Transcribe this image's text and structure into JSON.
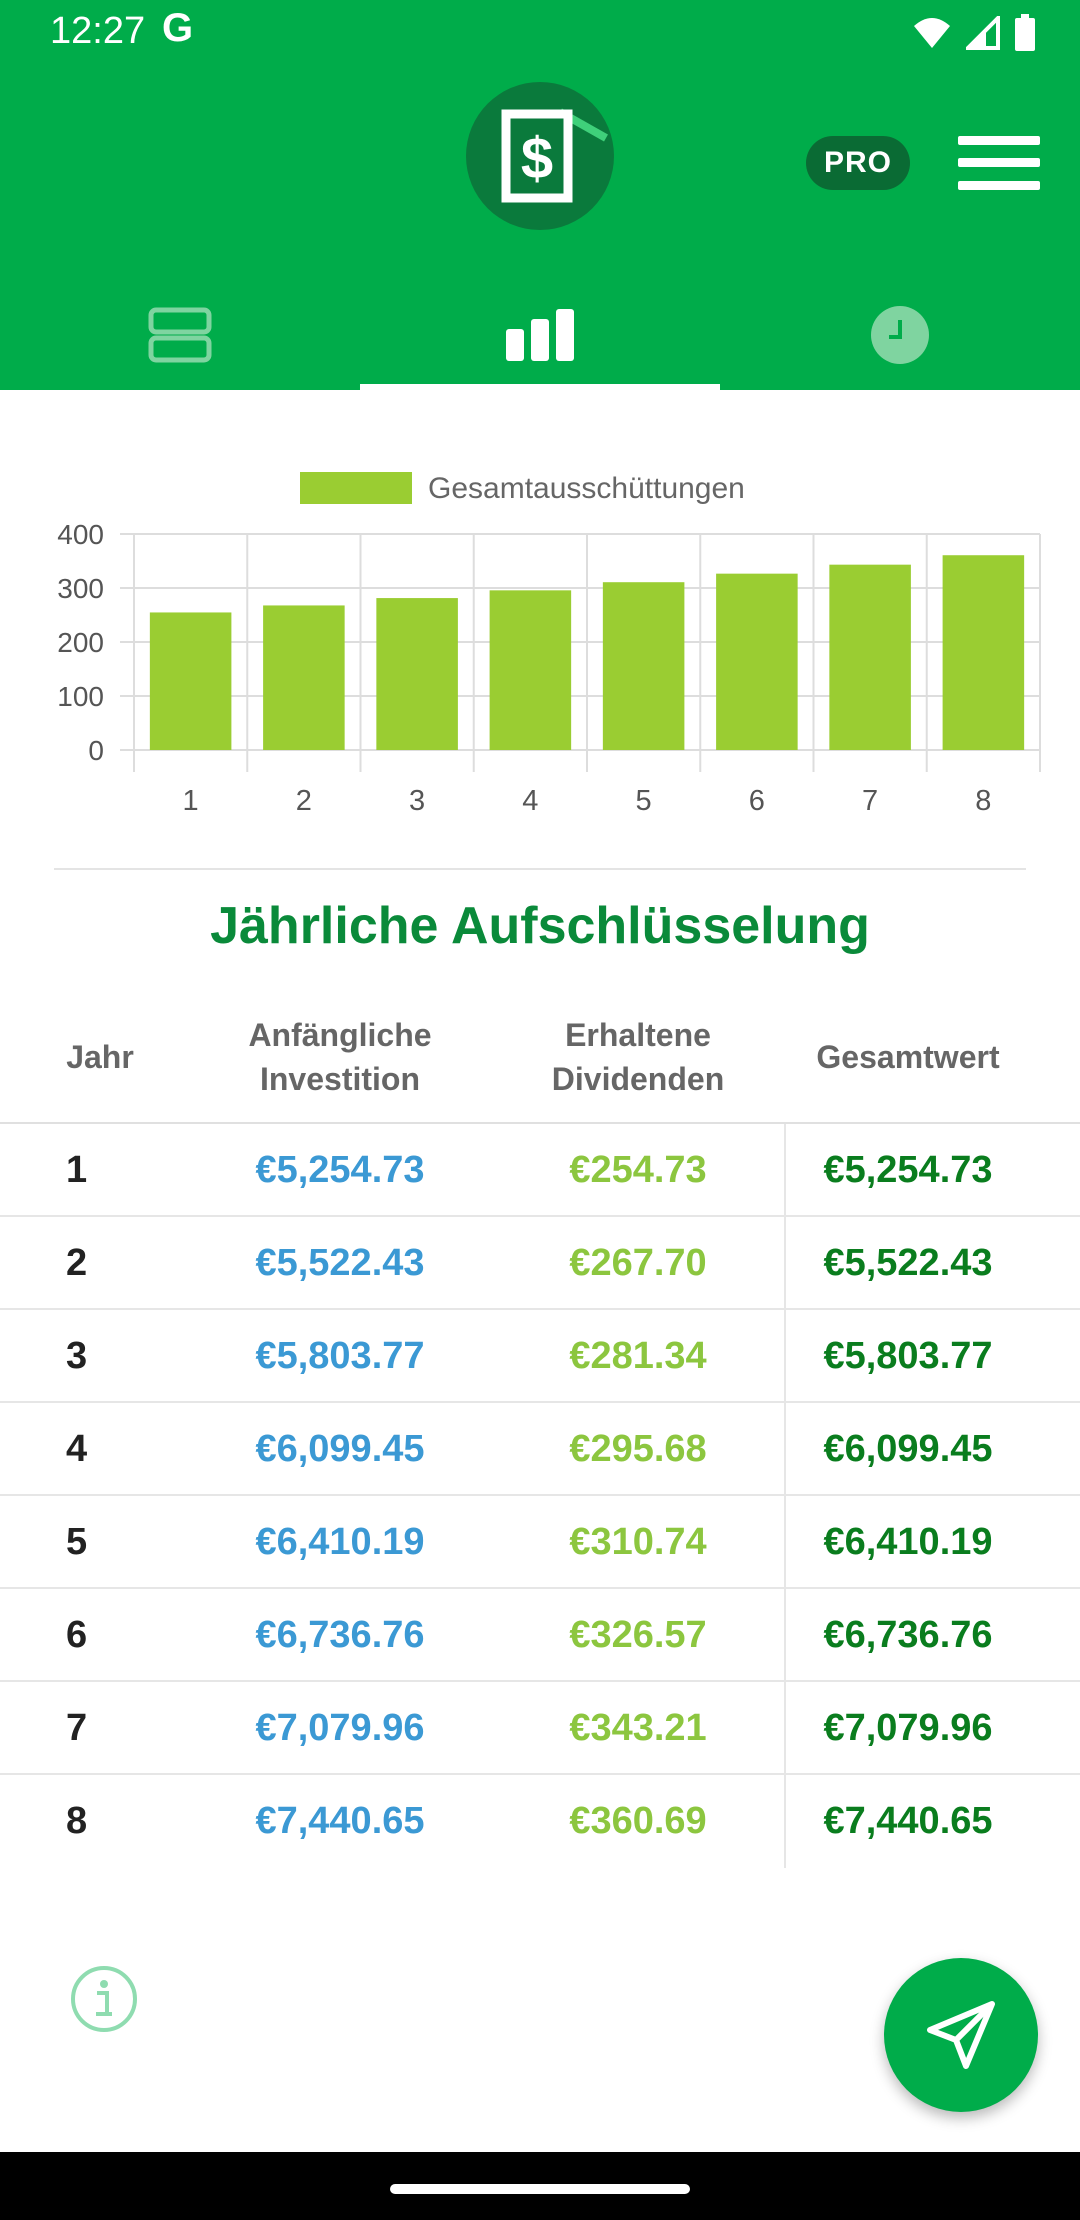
{
  "status_bar": {
    "time": "12:27",
    "g_logo": "G",
    "icons": [
      "wifi-icon",
      "signal-icon",
      "battery-icon"
    ]
  },
  "header": {
    "logo_icon": "dollar-document-logo",
    "pro_label": "PRO",
    "menu_icon": "hamburger-menu-icon"
  },
  "tabs": [
    {
      "icon": "list-view-icon",
      "active": false
    },
    {
      "icon": "bar-chart-icon",
      "active": true
    },
    {
      "icon": "clock-icon",
      "active": false
    }
  ],
  "chart_data": {
    "type": "bar",
    "categories": [
      "1",
      "2",
      "3",
      "4",
      "5",
      "6",
      "7",
      "8"
    ],
    "series": [
      {
        "name": "Gesamtausschüttungen",
        "values": [
          254.73,
          267.7,
          281.34,
          295.68,
          310.74,
          326.57,
          343.21,
          360.69
        ]
      }
    ],
    "yticks": [
      "0",
      "100",
      "200",
      "300",
      "400"
    ],
    "ylim": [
      0,
      400
    ],
    "grid": true,
    "legend": "top-center",
    "bar_color": "#9acd32"
  },
  "breakdown": {
    "title": "Jährliche Aufschlüsselung",
    "columns": [
      {
        "line1": "Jahr",
        "line2": ""
      },
      {
        "line1": "Anfängliche",
        "line2": "Investition"
      },
      {
        "line1": "Erhaltene",
        "line2": "Dividenden"
      },
      {
        "line1": "Gesamtwert",
        "line2": ""
      }
    ],
    "rows": [
      {
        "year": "1",
        "initial": "€5,254.73",
        "dividends": "€254.73",
        "total": "€5,254.73"
      },
      {
        "year": "2",
        "initial": "€5,522.43",
        "dividends": "€267.70",
        "total": "€5,522.43"
      },
      {
        "year": "3",
        "initial": "€5,803.77",
        "dividends": "€281.34",
        "total": "€5,803.77"
      },
      {
        "year": "4",
        "initial": "€6,099.45",
        "dividends": "€295.68",
        "total": "€6,099.45"
      },
      {
        "year": "5",
        "initial": "€6,410.19",
        "dividends": "€310.74",
        "total": "€6,410.19"
      },
      {
        "year": "6",
        "initial": "€6,736.76",
        "dividends": "€326.57",
        "total": "€6,736.76"
      },
      {
        "year": "7",
        "initial": "€7,079.96",
        "dividends": "€343.21",
        "total": "€7,079.96"
      },
      {
        "year": "8",
        "initial": "€7,440.65",
        "dividends": "€360.69",
        "total": "€7,440.65"
      }
    ]
  },
  "footer": {
    "info_icon": "info-icon",
    "send_icon": "send-icon"
  },
  "colors": {
    "primary": "#00ac4a",
    "dark_green": "#0a6b34",
    "initial": "#3b99d4",
    "dividends": "#8cc63f",
    "total": "#0a7d1e"
  }
}
